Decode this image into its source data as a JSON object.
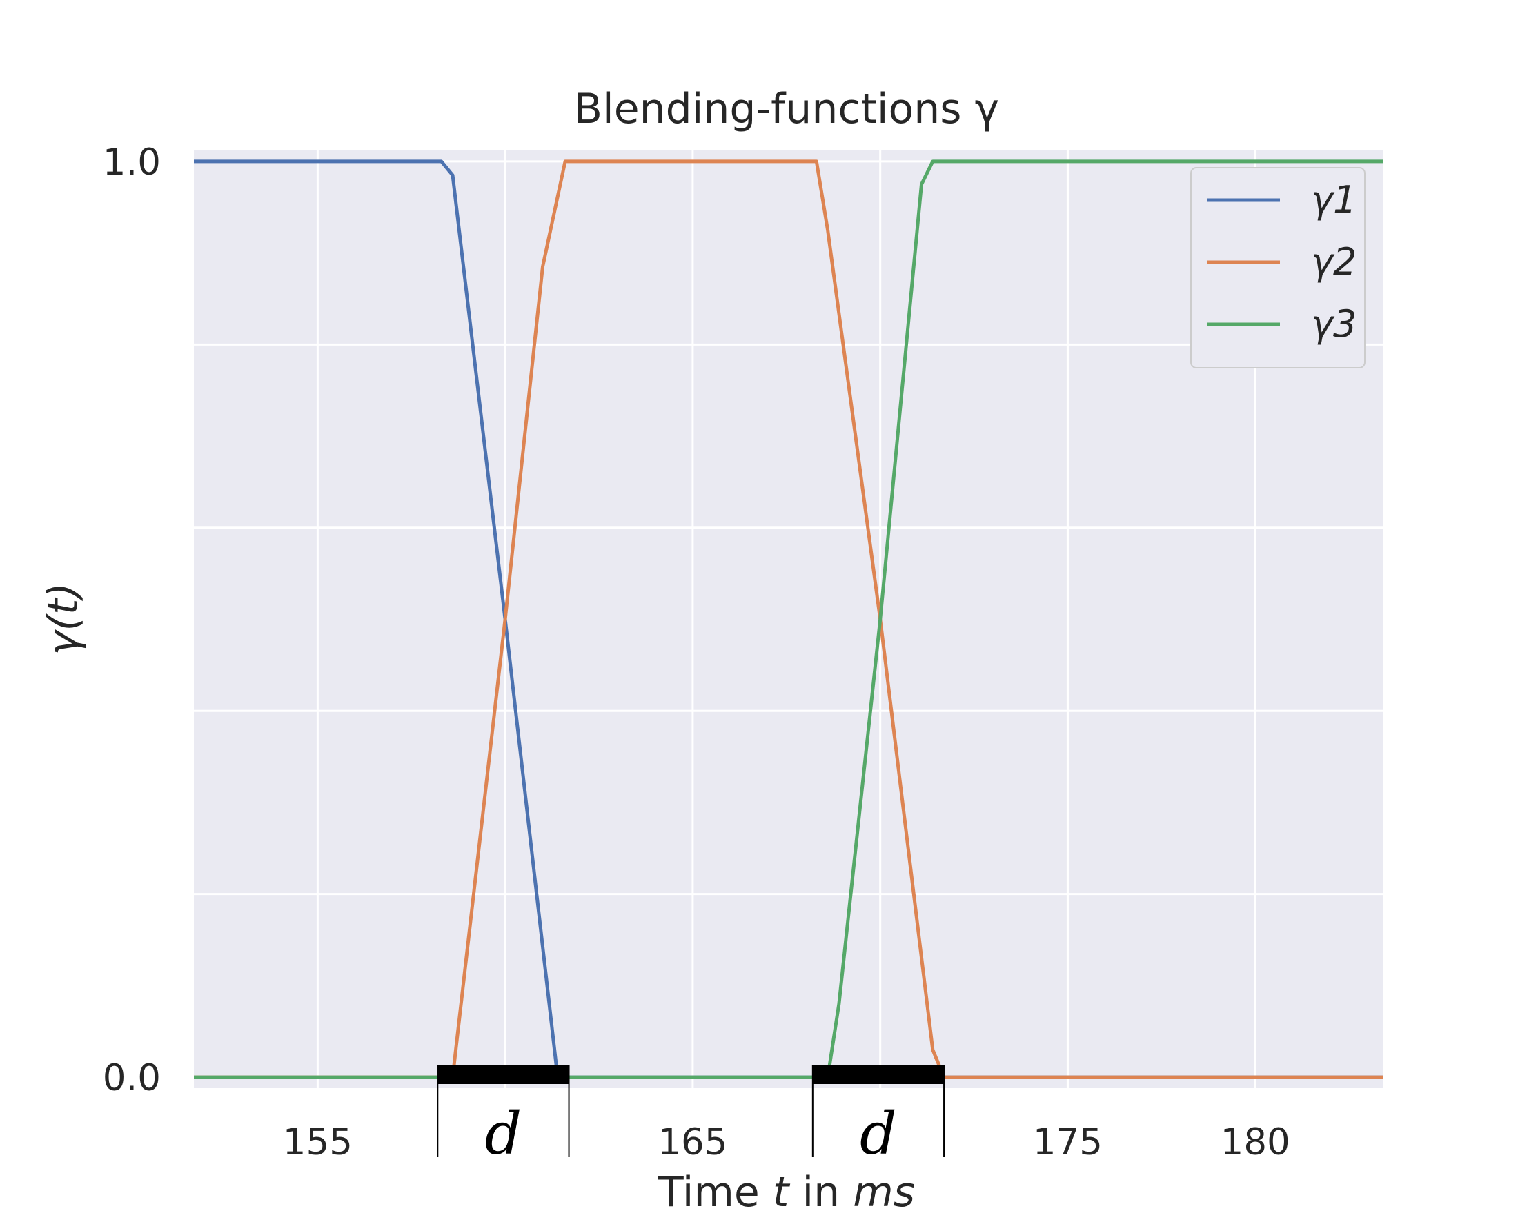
{
  "chart_data": {
    "type": "line",
    "title": "Blending-functions γ",
    "xlabel_parts": [
      "Time ",
      "t",
      " in ",
      "ms"
    ],
    "ylabel": "γ(t)",
    "xlim": [
      151.7,
      183.4
    ],
    "ylim": [
      -0.012,
      1.012
    ],
    "xticks": [
      155,
      160,
      165,
      170,
      175,
      180
    ],
    "xtick_labels": [
      "155",
      "",
      "165",
      "",
      "175",
      "180"
    ],
    "yticks": [
      0.0,
      0.2,
      0.4,
      0.6,
      0.8,
      1.0
    ],
    "ytick_labels": [
      "0.0",
      "",
      "",
      "",
      "",
      "1.0"
    ],
    "grid": true,
    "legend": "top-right",
    "series": [
      {
        "name": "γ1",
        "color": "#4c72b0",
        "x": [
          151.7,
          158.3,
          158.6,
          160.0,
          161.4,
          183.4
        ],
        "y": [
          1.0,
          1.0,
          0.985,
          0.5,
          0.0,
          0.0
        ]
      },
      {
        "name": "γ2",
        "color": "#dd8452",
        "x": [
          151.7,
          158.6,
          160.0,
          161.0,
          161.6,
          168.3,
          168.6,
          170.0,
          171.4,
          171.7,
          183.4
        ],
        "y": [
          0.0,
          0.0,
          0.5,
          0.885,
          1.0,
          1.0,
          0.925,
          0.5,
          0.03,
          0.0,
          0.0
        ]
      },
      {
        "name": "γ3",
        "color": "#55a868",
        "x": [
          151.7,
          168.6,
          168.9,
          170.0,
          171.1,
          171.4,
          183.4
        ],
        "y": [
          0.0,
          0.0,
          0.08,
          0.5,
          0.975,
          1.0,
          1.0
        ]
      }
    ],
    "annotations": [
      {
        "label": "d",
        "x_start": 158.2,
        "x_end": 161.7
      },
      {
        "label": "d",
        "x_start": 168.2,
        "x_end": 171.7
      }
    ]
  }
}
